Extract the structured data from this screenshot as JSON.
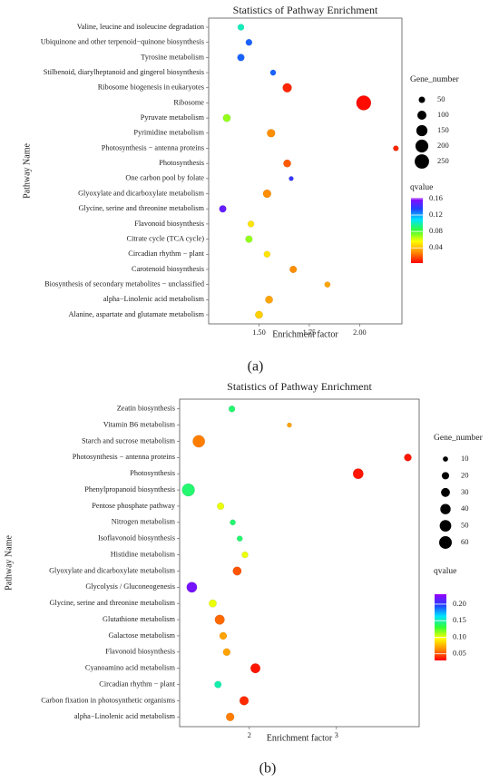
{
  "chart_data": [
    {
      "type": "bubble",
      "panel_label": "(a)",
      "title": "Statistics of Pathway Enrichment",
      "x_label": "Enrichment factor",
      "y_label": "Pathway Name",
      "categories": [
        "Valine, leucine and isoleucine degradation",
        "Ubiquinone and other terpenoid−quinone biosynthesis",
        "Tyrosine metabolism",
        "Stilbenoid, diarylheptanoid and gingerol biosynthesis",
        "Ribosome biogenesis in eukaryotes",
        "Ribosome",
        "Pyruvate metabolism",
        "Pyrimidine metabolism",
        "Photosynthesis − antenna proteins",
        "Photosynthesis",
        "One carbon pool by folate",
        "Glyoxylate and dicarboxylate metabolism",
        "Glycine, serine and threonine metabolism",
        "Flavonoid biosynthesis",
        "Citrate cycle (TCA cycle)",
        "Circadian rhythm − plant",
        "Carotenoid biosynthesis",
        "Biosynthesis of secondary metabolites − unclassified",
        "alpha−Linolenic acid metabolism",
        "Alanine, aspartate and glutamate metabolism"
      ],
      "values": [
        1.41,
        1.45,
        1.41,
        1.57,
        1.64,
        2.02,
        1.34,
        1.56,
        2.18,
        1.64,
        1.66,
        1.54,
        1.32,
        1.46,
        1.45,
        1.54,
        1.67,
        1.84,
        1.55,
        1.5
      ],
      "sizes": [
        50,
        50,
        60,
        40,
        100,
        260,
        70,
        80,
        35,
        70,
        25,
        80,
        60,
        50,
        60,
        50,
        60,
        40,
        70,
        70
      ],
      "qvalues": [
        0.1,
        0.13,
        0.13,
        0.13,
        0.01,
        0.005,
        0.07,
        0.03,
        0.01,
        0.02,
        0.14,
        0.03,
        0.15,
        0.05,
        0.07,
        0.05,
        0.03,
        0.035,
        0.035,
        0.045
      ],
      "xlim": [
        1.25,
        2.21
      ],
      "xticks": [
        {
          "value": 1.5,
          "label": "1.50"
        },
        {
          "value": 1.75,
          "label": "1.75"
        },
        {
          "value": 2.0,
          "label": "2.00"
        }
      ],
      "size_title": "Gene_number",
      "size_ticks": [
        50,
        100,
        150,
        200,
        250
      ],
      "color_title": "qvalue",
      "clim": [
        0.003,
        0.162
      ],
      "color_ticks": [
        0.04,
        0.08,
        0.12,
        0.16
      ],
      "colorscale": [
        "#ff0000",
        "#ff8c00",
        "#ffff00",
        "#33ff33",
        "#00e5ff",
        "#2040ff",
        "#9a00ff"
      ]
    },
    {
      "type": "bubble",
      "panel_label": "(b)",
      "title": "Statistics of Pathway Enrichment",
      "x_label": "Enrichment factor",
      "y_label": "Pathway Name",
      "categories": [
        "Zeatin biosynthesis",
        "Vitamin B6 metabolism",
        "Starch and sucrose metabolism",
        "Photosynthesis − antenna proteins",
        "Photosynthesis",
        "Phenylpropanoid biosynthesis",
        "Pentose phosphate pathway",
        "Nitrogen metabolism",
        "Isoflavonoid biosynthesis",
        "Histidine metabolism",
        "Glyoxylate and dicarboxylate metabolism",
        "Glycolysis / Gluconeogenesis",
        "Glycine, serine and threonine metabolism",
        "Glutathione metabolism",
        "Galactose metabolism",
        "Flavonoid biosynthesis",
        "Cyanoamino acid metabolism",
        "Circadian rhythm − plant",
        "Carbon fixation in photosynthetic organisms",
        "alpha−Linolenic acid metabolism"
      ],
      "values": [
        1.8,
        2.46,
        1.42,
        3.82,
        3.25,
        1.3,
        1.67,
        1.81,
        1.89,
        1.95,
        1.86,
        1.34,
        1.58,
        1.66,
        1.7,
        1.74,
        2.07,
        1.64,
        1.94,
        1.78
      ],
      "sizes": [
        15,
        8,
        55,
        20,
        40,
        60,
        18,
        12,
        12,
        15,
        28,
        40,
        22,
        35,
        20,
        20,
        35,
        18,
        30,
        25
      ],
      "qvalues": [
        0.14,
        0.07,
        0.06,
        0.035,
        0.035,
        0.14,
        0.1,
        0.14,
        0.14,
        0.1,
        0.05,
        0.22,
        0.1,
        0.055,
        0.07,
        0.07,
        0.035,
        0.15,
        0.04,
        0.06
      ],
      "xlim": [
        1.2,
        3.95
      ],
      "xticks": [
        2,
        3
      ],
      "size_title": "Gene_number",
      "size_ticks": [
        10,
        20,
        30,
        40,
        50,
        60
      ],
      "color_title": "qvalue",
      "clim": [
        0.03,
        0.23
      ],
      "color_ticks": [
        0.05,
        {
          "value": 0.1,
          "label": "0.10"
        },
        0.15,
        {
          "value": 0.2,
          "label": "0.20"
        }
      ],
      "colorscale": [
        "#ff0000",
        "#ff8c00",
        "#ffff00",
        "#33ff33",
        "#00e5ff",
        "#2040ff",
        "#9a00ff"
      ]
    }
  ]
}
